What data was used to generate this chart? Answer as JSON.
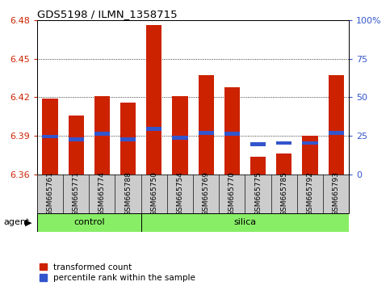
{
  "title": "GDS5198 / ILMN_1358715",
  "samples": [
    "GSM665761",
    "GSM665771",
    "GSM665774",
    "GSM665788",
    "GSM665750",
    "GSM665754",
    "GSM665769",
    "GSM665770",
    "GSM665775",
    "GSM665785",
    "GSM665792",
    "GSM665793"
  ],
  "transformed_count": [
    6.419,
    6.406,
    6.421,
    6.416,
    6.476,
    6.421,
    6.437,
    6.428,
    6.374,
    6.376,
    6.39,
    6.437
  ],
  "percentile_rank": [
    6.388,
    6.386,
    6.39,
    6.386,
    6.394,
    6.387,
    6.391,
    6.39,
    6.382,
    6.383,
    6.383,
    6.391
  ],
  "ylim_left": [
    6.36,
    6.48
  ],
  "ylim_right": [
    0,
    100
  ],
  "yticks_left": [
    6.36,
    6.39,
    6.42,
    6.45,
    6.48
  ],
  "yticks_right": [
    0,
    25,
    50,
    75,
    100
  ],
  "ytick_right_labels": [
    "0",
    "25",
    "50",
    "75",
    "100%"
  ],
  "bar_color": "#cc2200",
  "blue_color": "#3355cc",
  "label_bg": "#cccccc",
  "bg_color_green": "#88ee66",
  "agent_label": "agent",
  "control_label": "control",
  "silica_label": "silica",
  "legend_red": "transformed count",
  "legend_blue": "percentile rank within the sample",
  "n_control": 4,
  "n_silica": 8,
  "base": 6.36,
  "bar_width": 0.6,
  "blue_bar_height": 0.003
}
